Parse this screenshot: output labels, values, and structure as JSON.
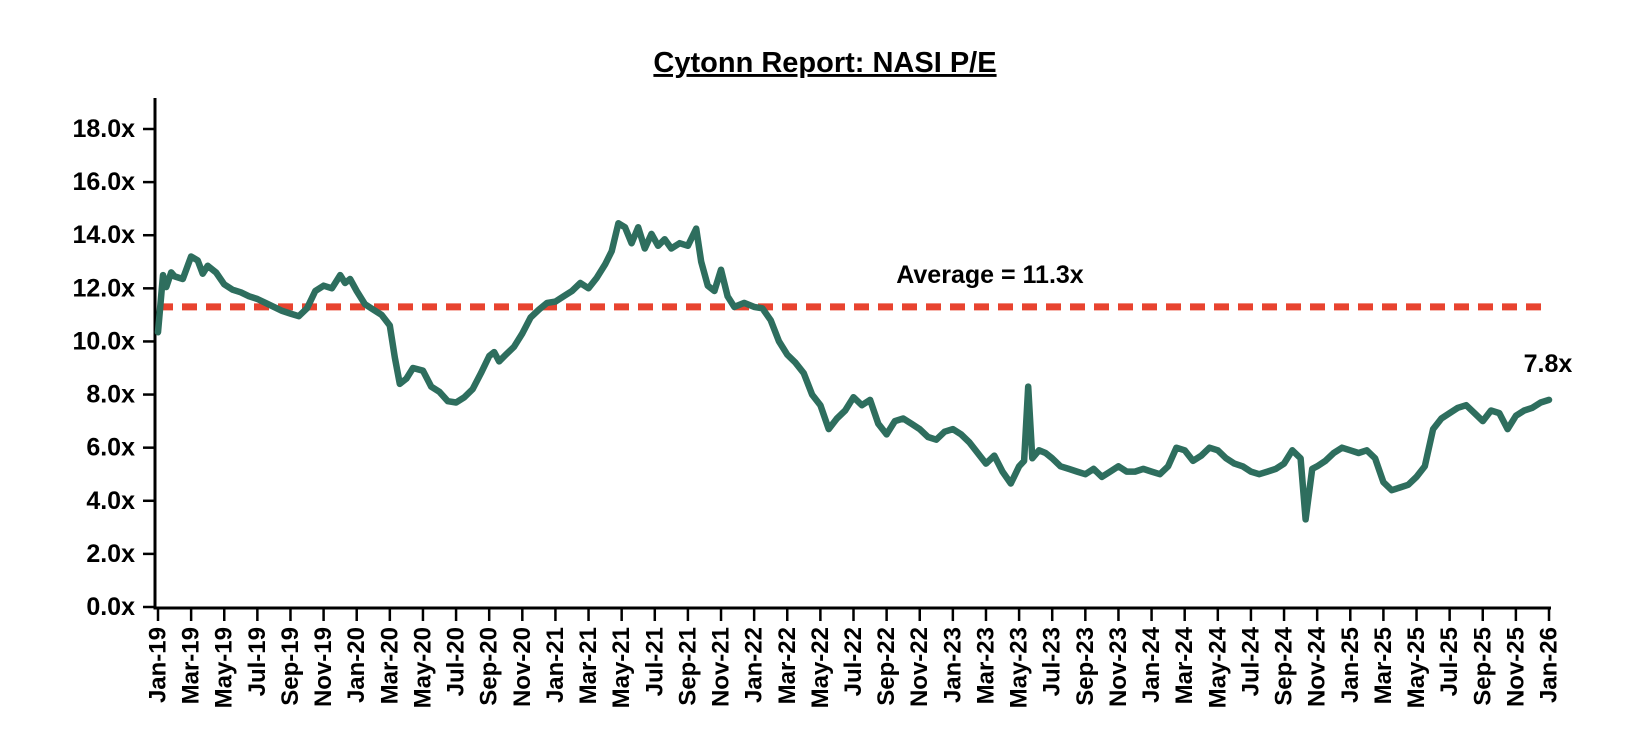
{
  "chart_data": {
    "type": "line",
    "title": "Cytonn Report: NASI P/E",
    "ylim": [
      0,
      18
    ],
    "y_tick_step": 2,
    "y_tick_labels": [
      "0.0x",
      "2.0x",
      "4.0x",
      "6.0x",
      "8.0x",
      "10.0x",
      "12.0x",
      "14.0x",
      "16.0x",
      "18.0x"
    ],
    "x_tick_interval_months": 2,
    "x_tick_labels": [
      "Jan-19",
      "Mar-19",
      "May-19",
      "Jul-19",
      "Sep-19",
      "Nov-19",
      "Jan-20",
      "Mar-20",
      "May-20",
      "Jul-20",
      "Sep-20",
      "Nov-20",
      "Jan-21",
      "Mar-21",
      "May-21",
      "Jul-21",
      "Sep-21",
      "Nov-21",
      "Jan-22",
      "Mar-22",
      "May-22",
      "Jul-22",
      "Sep-22",
      "Nov-22",
      "Jan-23",
      "Mar-23",
      "May-23",
      "Jul-23",
      "Sep-23",
      "Nov-23",
      "Jan-24",
      "Mar-24",
      "May-24",
      "Jul-24",
      "Sep-24",
      "Nov-24",
      "Jan-25",
      "Mar-25",
      "May-25",
      "Jul-25",
      "Sep-25",
      "Nov-25",
      "Jan-26"
    ],
    "x_range_months": [
      0,
      84
    ],
    "grid": "off",
    "legend": "none",
    "average_line": {
      "value": 11.3,
      "label": "Average = 11.3x",
      "color": "#E8432F",
      "style": "dashed"
    },
    "end_label": "7.8x",
    "last_value": 7.8,
    "series": [
      {
        "name": "NASI P/E",
        "color": "#2E6E5E",
        "points": [
          [
            0,
            10.35
          ],
          [
            0.3,
            12.5
          ],
          [
            0.5,
            12.05
          ],
          [
            0.8,
            12.6
          ],
          [
            1,
            12.45
          ],
          [
            1.5,
            12.35
          ],
          [
            2,
            13.2
          ],
          [
            2.4,
            13.05
          ],
          [
            2.7,
            12.55
          ],
          [
            3,
            12.85
          ],
          [
            3.5,
            12.6
          ],
          [
            4,
            12.15
          ],
          [
            4.5,
            11.95
          ],
          [
            5,
            11.85
          ],
          [
            5.5,
            11.7
          ],
          [
            6,
            11.6
          ],
          [
            6.5,
            11.45
          ],
          [
            7,
            11.3
          ],
          [
            7.5,
            11.15
          ],
          [
            8,
            11.05
          ],
          [
            8.5,
            10.95
          ],
          [
            9,
            11.25
          ],
          [
            9.5,
            11.9
          ],
          [
            10,
            12.1
          ],
          [
            10.5,
            12.0
          ],
          [
            11,
            12.5
          ],
          [
            11.3,
            12.2
          ],
          [
            11.6,
            12.35
          ],
          [
            12,
            11.9
          ],
          [
            12.5,
            11.4
          ],
          [
            13,
            11.2
          ],
          [
            13.5,
            11.0
          ],
          [
            14,
            10.6
          ],
          [
            14.3,
            9.4
          ],
          [
            14.6,
            8.4
          ],
          [
            15,
            8.6
          ],
          [
            15.4,
            9.0
          ],
          [
            16,
            8.9
          ],
          [
            16.5,
            8.3
          ],
          [
            17,
            8.1
          ],
          [
            17.5,
            7.75
          ],
          [
            18,
            7.7
          ],
          [
            18.5,
            7.9
          ],
          [
            19,
            8.2
          ],
          [
            19.5,
            8.8
          ],
          [
            20,
            9.45
          ],
          [
            20.3,
            9.6
          ],
          [
            20.6,
            9.25
          ],
          [
            21,
            9.5
          ],
          [
            21.5,
            9.8
          ],
          [
            22,
            10.3
          ],
          [
            22.5,
            10.9
          ],
          [
            23,
            11.2
          ],
          [
            23.5,
            11.45
          ],
          [
            24,
            11.5
          ],
          [
            24.5,
            11.7
          ],
          [
            25,
            11.9
          ],
          [
            25.5,
            12.2
          ],
          [
            26,
            12.0
          ],
          [
            26.5,
            12.4
          ],
          [
            27,
            12.9
          ],
          [
            27.4,
            13.4
          ],
          [
            27.8,
            14.45
          ],
          [
            28.2,
            14.3
          ],
          [
            28.6,
            13.7
          ],
          [
            29,
            14.3
          ],
          [
            29.4,
            13.5
          ],
          [
            29.8,
            14.05
          ],
          [
            30.2,
            13.6
          ],
          [
            30.6,
            13.85
          ],
          [
            31,
            13.5
          ],
          [
            31.5,
            13.7
          ],
          [
            32,
            13.6
          ],
          [
            32.5,
            14.25
          ],
          [
            32.8,
            13.0
          ],
          [
            33.2,
            12.1
          ],
          [
            33.6,
            11.9
          ],
          [
            34,
            12.7
          ],
          [
            34.4,
            11.7
          ],
          [
            34.8,
            11.3
          ],
          [
            35.4,
            11.45
          ],
          [
            36,
            11.3
          ],
          [
            36.5,
            11.25
          ],
          [
            37,
            10.8
          ],
          [
            37.5,
            10.0
          ],
          [
            38,
            9.5
          ],
          [
            38.5,
            9.2
          ],
          [
            39,
            8.8
          ],
          [
            39.5,
            8.0
          ],
          [
            40,
            7.6
          ],
          [
            40.5,
            6.7
          ],
          [
            41,
            7.1
          ],
          [
            41.5,
            7.4
          ],
          [
            42,
            7.9
          ],
          [
            42.5,
            7.6
          ],
          [
            43,
            7.8
          ],
          [
            43.5,
            6.9
          ],
          [
            44,
            6.5
          ],
          [
            44.5,
            7.0
          ],
          [
            45,
            7.1
          ],
          [
            45.5,
            6.9
          ],
          [
            46,
            6.7
          ],
          [
            46.5,
            6.4
          ],
          [
            47,
            6.3
          ],
          [
            47.5,
            6.6
          ],
          [
            48,
            6.7
          ],
          [
            48.5,
            6.5
          ],
          [
            49,
            6.2
          ],
          [
            49.5,
            5.8
          ],
          [
            50,
            5.4
          ],
          [
            50.5,
            5.7
          ],
          [
            51,
            5.1
          ],
          [
            51.5,
            4.65
          ],
          [
            52,
            5.3
          ],
          [
            52.3,
            5.5
          ],
          [
            52.55,
            8.3
          ],
          [
            52.8,
            5.6
          ],
          [
            53.2,
            5.9
          ],
          [
            53.6,
            5.8
          ],
          [
            54,
            5.6
          ],
          [
            54.5,
            5.3
          ],
          [
            55,
            5.2
          ],
          [
            55.5,
            5.1
          ],
          [
            56,
            5.0
          ],
          [
            56.5,
            5.2
          ],
          [
            57,
            4.9
          ],
          [
            57.5,
            5.1
          ],
          [
            58,
            5.3
          ],
          [
            58.5,
            5.1
          ],
          [
            59,
            5.1
          ],
          [
            59.5,
            5.2
          ],
          [
            60,
            5.1
          ],
          [
            60.5,
            5.0
          ],
          [
            61,
            5.3
          ],
          [
            61.5,
            6.0
          ],
          [
            62,
            5.9
          ],
          [
            62.5,
            5.5
          ],
          [
            63,
            5.7
          ],
          [
            63.5,
            6.0
          ],
          [
            64,
            5.9
          ],
          [
            64.5,
            5.6
          ],
          [
            65,
            5.4
          ],
          [
            65.5,
            5.3
          ],
          [
            66,
            5.1
          ],
          [
            66.5,
            5.0
          ],
          [
            67,
            5.1
          ],
          [
            67.5,
            5.2
          ],
          [
            68,
            5.4
          ],
          [
            68.5,
            5.9
          ],
          [
            69,
            5.6
          ],
          [
            69.3,
            3.3
          ],
          [
            69.7,
            5.2
          ],
          [
            70,
            5.3
          ],
          [
            70.5,
            5.5
          ],
          [
            71,
            5.8
          ],
          [
            71.5,
            6.0
          ],
          [
            72,
            5.9
          ],
          [
            72.5,
            5.8
          ],
          [
            73,
            5.9
          ],
          [
            73.5,
            5.6
          ],
          [
            74,
            4.7
          ],
          [
            74.5,
            4.4
          ],
          [
            75,
            4.5
          ],
          [
            75.5,
            4.6
          ],
          [
            76,
            4.9
          ],
          [
            76.5,
            5.3
          ],
          [
            77,
            6.7
          ],
          [
            77.5,
            7.1
          ],
          [
            78,
            7.3
          ],
          [
            78.5,
            7.5
          ],
          [
            79,
            7.6
          ],
          [
            79.5,
            7.3
          ],
          [
            80,
            7.0
          ],
          [
            80.5,
            7.4
          ],
          [
            81,
            7.3
          ],
          [
            81.5,
            6.7
          ],
          [
            82,
            7.2
          ],
          [
            82.5,
            7.4
          ],
          [
            83,
            7.5
          ],
          [
            83.5,
            7.7
          ],
          [
            84,
            7.8
          ]
        ]
      }
    ],
    "axis_color": "#000000"
  }
}
